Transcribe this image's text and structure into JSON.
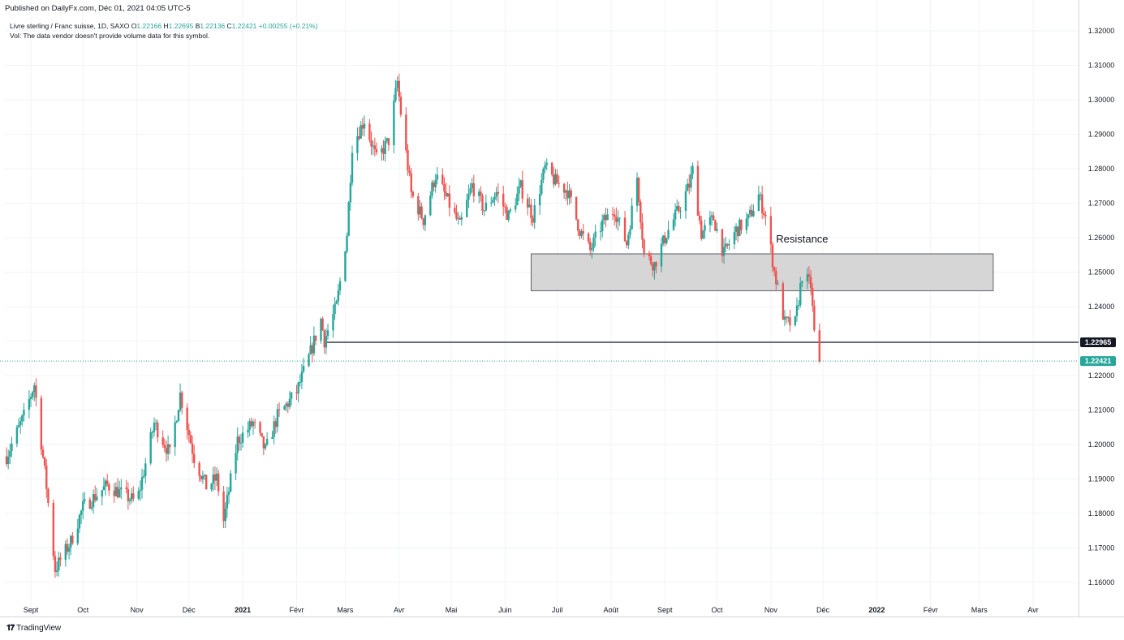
{
  "published": "Published on DailyFx.com, Déc 01, 2021 04:05 UTC-5",
  "legend": {
    "symbol": "Livre sterling / Franc suisse, 1D, SAXO",
    "open_label": "O",
    "open": "1.22166",
    "high_label": "H",
    "high": "1.22695",
    "low_label": "B",
    "low": "1.22136",
    "close_label": "C",
    "close": "1.22421",
    "change": "+0.00255 (+0.21%)",
    "volume_note": "Vol: The data vendor doesn't provide volume data for this symbol."
  },
  "footer": {
    "brand": "TradingView",
    "logo": "tradingview-logo-icon"
  },
  "colors": {
    "up": "#26a69a",
    "down": "#ef5350",
    "grid": "#f0f3fa",
    "box_fill": "#d1d1d3",
    "box_stroke": "#5d606b",
    "current_price_bg": "#26a69a",
    "level_bg": "#131722"
  },
  "chart_data": {
    "type": "candlestick",
    "title": "Livre sterling / Franc suisse, 1D, SAXO",
    "x_tick_labels": [
      "Sept",
      "Oct",
      "Nov",
      "Déc",
      "2021",
      "Févr",
      "Mars",
      "Avr",
      "Mai",
      "Juin",
      "Juil",
      "Août",
      "Sept",
      "Oct",
      "Nov",
      "Déc",
      "2022",
      "Févr",
      "Mars",
      "Avr"
    ],
    "y_tick_labels": [
      "1.32000",
      "1.31000",
      "1.30000",
      "1.29000",
      "1.28000",
      "1.27000",
      "1.26000",
      "1.25000",
      "1.24000",
      "1.23000",
      "1.22000",
      "1.21000",
      "1.20000",
      "1.19000",
      "1.18000",
      "1.17000",
      "1.16000"
    ],
    "ylim": [
      1.155,
      1.322
    ],
    "horizontal_level": {
      "value": 1.22965,
      "label": "1.22965",
      "from": "2021-02-17"
    },
    "current_price": {
      "value": 1.22421,
      "label": "1.22421"
    },
    "resistance_zone": {
      "label": "Resistance",
      "from": "2021-06-16",
      "to": "2022-03-09",
      "low": 1.2446,
      "high": 1.2553
    },
    "trend_points": [
      [
        "2020-08-18",
        1.1966
      ],
      [
        "2020-08-28",
        1.2082
      ],
      [
        "2020-09-03",
        1.2175
      ],
      [
        "2020-09-10",
        1.1878
      ],
      [
        "2020-09-15",
        1.1638
      ],
      [
        "2020-09-24",
        1.1718
      ],
      [
        "2020-10-01",
        1.1818
      ],
      [
        "2020-10-15",
        1.1882
      ],
      [
        "2020-11-01",
        1.1832
      ],
      [
        "2020-11-05",
        1.1922
      ],
      [
        "2020-11-11",
        1.2062
      ],
      [
        "2020-11-20",
        1.1972
      ],
      [
        "2020-11-26",
        1.2146
      ],
      [
        "2020-12-04",
        1.1962
      ],
      [
        "2020-12-11",
        1.1878
      ],
      [
        "2020-12-17",
        1.1902
      ],
      [
        "2020-12-21",
        1.1778
      ],
      [
        "2020-12-29",
        1.2012
      ],
      [
        "2021-01-07",
        1.2062
      ],
      [
        "2021-01-14",
        1.1982
      ],
      [
        "2021-01-21",
        1.2082
      ],
      [
        "2021-02-01",
        1.2152
      ],
      [
        "2021-02-08",
        1.2252
      ],
      [
        "2021-02-15",
        1.2362
      ],
      [
        "2021-02-17",
        1.2302
      ],
      [
        "2021-02-24",
        1.2402
      ],
      [
        "2021-03-02",
        1.2612
      ],
      [
        "2021-03-05",
        1.2866
      ],
      [
        "2021-03-12",
        1.2942
      ],
      [
        "2021-03-19",
        1.2826
      ],
      [
        "2021-03-26",
        1.2882
      ],
      [
        "2021-03-31",
        1.3052
      ],
      [
        "2021-04-02",
        1.2962
      ],
      [
        "2021-04-08",
        1.2728
      ],
      [
        "2021-04-15",
        1.2652
      ],
      [
        "2021-04-22",
        1.2782
      ],
      [
        "2021-04-29",
        1.2706
      ],
      [
        "2021-05-06",
        1.2632
      ],
      [
        "2021-05-13",
        1.2752
      ],
      [
        "2021-05-20",
        1.2682
      ],
      [
        "2021-05-27",
        1.2732
      ],
      [
        "2021-06-03",
        1.2662
      ],
      [
        "2021-06-10",
        1.2746
      ],
      [
        "2021-06-17",
        1.2662
      ],
      [
        "2021-06-24",
        1.2802
      ],
      [
        "2021-06-30",
        1.2762
      ],
      [
        "2021-07-07",
        1.2736
      ],
      [
        "2021-07-14",
        1.2622
      ],
      [
        "2021-07-20",
        1.2562
      ],
      [
        "2021-07-27",
        1.2642
      ],
      [
        "2021-08-03",
        1.2682
      ],
      [
        "2021-08-10",
        1.2582
      ],
      [
        "2021-08-16",
        1.2776
      ],
      [
        "2021-08-20",
        1.2552
      ],
      [
        "2021-08-26",
        1.2522
      ],
      [
        "2021-09-02",
        1.2612
      ],
      [
        "2021-09-09",
        1.2682
      ],
      [
        "2021-09-15",
        1.2752
      ],
      [
        "2021-09-17",
        1.2796
      ],
      [
        "2021-09-22",
        1.2612
      ],
      [
        "2021-09-29",
        1.2656
      ],
      [
        "2021-10-05",
        1.2552
      ],
      [
        "2021-10-12",
        1.2622
      ],
      [
        "2021-10-19",
        1.2652
      ],
      [
        "2021-10-25",
        1.2722
      ],
      [
        "2021-10-29",
        1.2662
      ],
      [
        "2021-11-03",
        1.2502
      ],
      [
        "2021-11-09",
        1.2352
      ],
      [
        "2021-11-15",
        1.2352
      ],
      [
        "2021-11-19",
        1.2492
      ],
      [
        "2021-11-24",
        1.2462
      ],
      [
        "2021-11-26",
        1.2322
      ],
      [
        "2021-11-29",
        1.2242
      ]
    ]
  }
}
